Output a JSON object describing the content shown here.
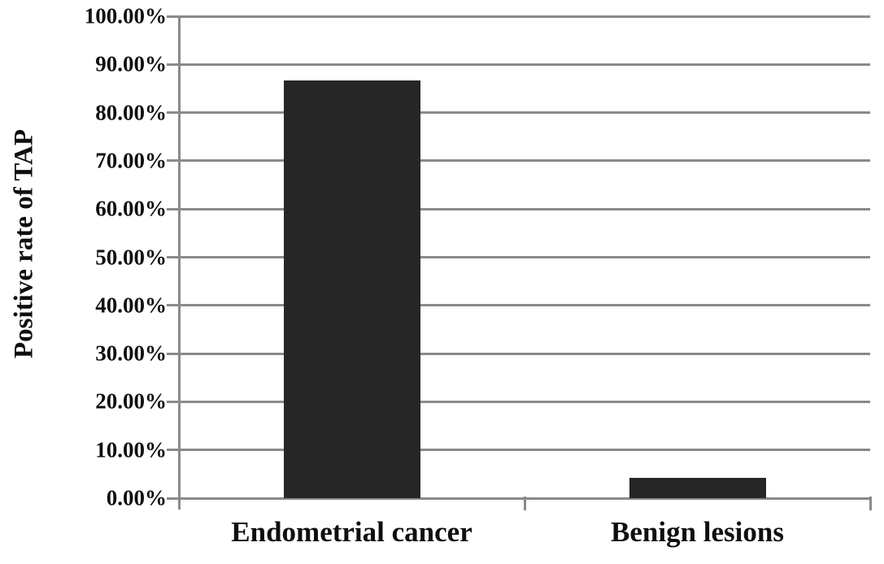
{
  "chart_data": {
    "type": "bar",
    "title": "",
    "ylabel": "Positive rate of TAP",
    "xlabel": "",
    "categories": [
      "Endometrial cancer",
      "Benign lesions"
    ],
    "values": [
      86.7,
      4.2
    ],
    "ylim": [
      0,
      100
    ],
    "ytick_step": 10,
    "ytick_labels": [
      "0.00%",
      "10.00%",
      "20.00%",
      "30.00%",
      "40.00%",
      "50.00%",
      "60.00%",
      "70.00%",
      "80.00%",
      "90.00%",
      "100.00%"
    ],
    "grid": true,
    "legend": "none",
    "colors": {
      "bar": "#262626",
      "axis": "#8a8a8a",
      "text": "#0f0f0f",
      "background": "#ffffff"
    }
  }
}
